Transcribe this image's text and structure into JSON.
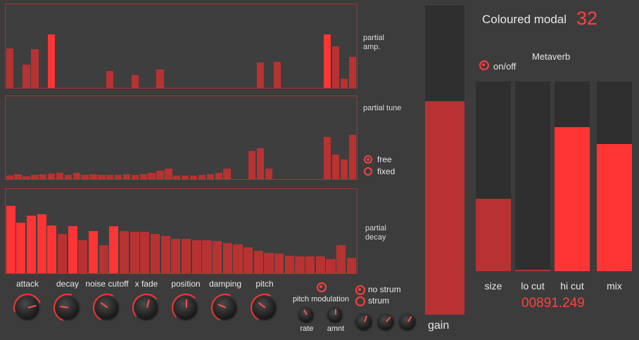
{
  "colors": {
    "bright": "#ff3535",
    "dark": "#b83232",
    "panel_border": "#b03030",
    "bg": "#3c3c3c"
  },
  "header": {
    "title": "Coloured modal",
    "number": "32"
  },
  "panels": {
    "amp_label": "partial\namp.",
    "tune_label": "partial tune",
    "decay_label": "partial\ndecay",
    "amp_values": [
      0.47,
      0,
      0.28,
      0.46,
      0,
      0.64,
      0,
      0,
      0,
      0,
      0,
      0,
      0.2,
      0,
      0,
      0.15,
      0,
      0,
      0.22,
      0,
      0,
      0,
      0,
      0,
      0,
      0,
      0,
      0,
      0,
      0,
      0.3,
      0,
      0.31,
      0,
      0,
      0,
      0,
      0,
      0.64,
      0.5,
      0.11,
      0.37
    ],
    "amp_bright": [
      false,
      false,
      false,
      false,
      false,
      true,
      false,
      false,
      false,
      false,
      false,
      false,
      false,
      false,
      false,
      false,
      false,
      false,
      false,
      false,
      false,
      false,
      false,
      false,
      false,
      false,
      false,
      false,
      false,
      false,
      false,
      false,
      false,
      false,
      false,
      false,
      false,
      false,
      true,
      false,
      false,
      false
    ],
    "tune_values": [
      0.04,
      0.06,
      0.03,
      0.05,
      0.06,
      0.07,
      0.08,
      0.05,
      0.08,
      0.05,
      0.06,
      0.05,
      0.05,
      0.05,
      0.06,
      0.05,
      0.06,
      0.08,
      0.1,
      0.13,
      0.04,
      0.04,
      0.04,
      0.05,
      0.06,
      0.08,
      0.13,
      0,
      0,
      0.34,
      0.37,
      0.13,
      0,
      0,
      0,
      0,
      0,
      0,
      0.51,
      0.3,
      0.24,
      0.53
    ],
    "decay_values": [
      0.8,
      0.6,
      0.68,
      0.7,
      0.57,
      0.47,
      0.56,
      0.39,
      0.5,
      0.33,
      0.56,
      0.5,
      0.49,
      0.49,
      0.47,
      0.44,
      0.41,
      0.41,
      0.39,
      0.39,
      0.38,
      0.36,
      0.34,
      0.31,
      0.27,
      0.24,
      0.23,
      0.21,
      0.2,
      0.2,
      0.2,
      0.17,
      0.33,
      0.18
    ],
    "decay_bright": [
      true,
      true,
      true,
      true,
      true,
      false,
      true,
      false,
      true,
      false,
      true,
      false,
      false,
      false,
      false,
      false,
      false,
      false,
      false,
      false,
      false,
      false,
      false,
      false,
      false,
      false,
      false,
      false,
      false,
      false,
      false,
      false,
      false,
      false
    ],
    "tune_options": [
      "free",
      "fixed"
    ],
    "tune_selected": "free"
  },
  "knobs": [
    {
      "label": "attack",
      "value": 0.78
    },
    {
      "label": "decay",
      "value": 0.2
    },
    {
      "label": "noise cutoff",
      "value": 0.3
    },
    {
      "label": "x fade",
      "value": 0.55
    },
    {
      "label": "position",
      "value": 0.5
    },
    {
      "label": "damping",
      "value": 0.25
    },
    {
      "label": "pitch",
      "value": 0.3
    }
  ],
  "pitch_mod": {
    "label": "pitch modulation",
    "rate_label": "rate",
    "amnt_label": "amnt"
  },
  "strum": {
    "options": [
      "no strum",
      "strum"
    ],
    "selected": "no strum"
  },
  "gain": {
    "label": "gain",
    "value": 0.69
  },
  "reverb": {
    "title": "Metaverb",
    "toggle_label": "on/off",
    "enabled": true,
    "sliders": [
      {
        "label": "size",
        "value": 0.38
      },
      {
        "label": "lo cut",
        "value": 0.0
      },
      {
        "label": "hi cut",
        "value": 0.76
      },
      {
        "label": "mix",
        "value": 0.67
      }
    ],
    "readout": "00891.249"
  }
}
